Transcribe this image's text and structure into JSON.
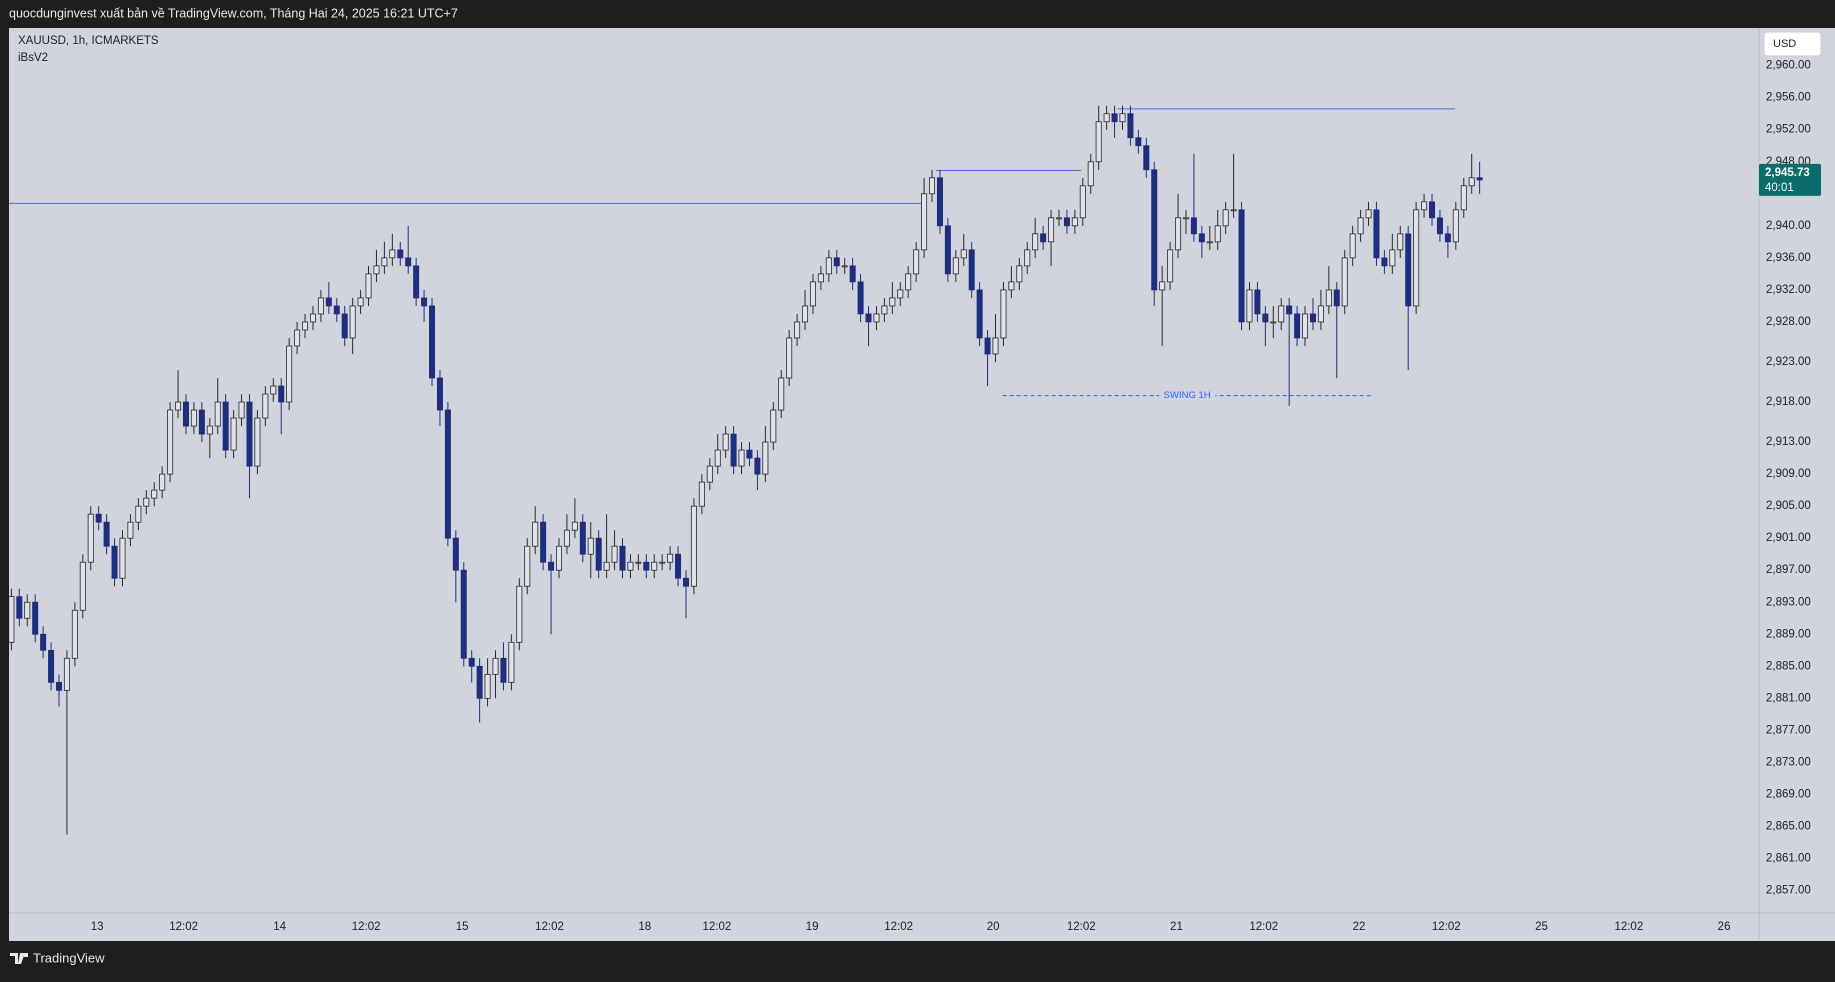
{
  "header": {
    "publisher": "quocdunginvest xuất bản về TradingView.com, Tháng Hai 24, 2025 16:21 UTC+7"
  },
  "footer": {
    "brand": "TradingView"
  },
  "chart_data": {
    "type": "candlestick",
    "title": "XAUUSD, 1h, ICMARKETS",
    "indicator": "iBsV2",
    "currency": "USD",
    "up_color": "#dfe2ea",
    "down_color": "#1f2f7e",
    "line_color": "#4f6fd6",
    "open": [
      2888,
      2893.7,
      2891,
      2893,
      2889,
      2887,
      2883,
      2882,
      2886,
      2892,
      2898,
      2904,
      2903,
      2900,
      2896,
      2901,
      2903,
      2905,
      2906,
      2907,
      2909,
      2917,
      2918,
      2915,
      2917,
      2914,
      2915,
      2918,
      2912,
      2916,
      2918,
      2910,
      2916,
      2919,
      2920,
      2918,
      2925,
      2927,
      2928,
      2929,
      2931,
      2930,
      2929,
      2926,
      2930,
      2931,
      2934,
      2935,
      2936,
      2937,
      2936,
      2935,
      2931,
      2930,
      2921,
      2917,
      2901,
      2897,
      2886,
      2885,
      2881,
      2884,
      2886,
      2883,
      2888,
      2895,
      2900,
      2903,
      2898,
      2897,
      2900,
      2902,
      2903,
      2899,
      2901,
      2897,
      2898,
      2900,
      2897,
      2898,
      2898,
      2897,
      2898,
      2898,
      2899,
      2896,
      2895,
      2905,
      2908,
      2910,
      2912,
      2914,
      2910,
      2912,
      2911,
      2909,
      2913,
      2917,
      2921,
      2926,
      2928,
      2930,
      2933,
      2934,
      2936,
      2935,
      2935,
      2933,
      2929,
      2928,
      2929,
      2930,
      2931,
      2932,
      2934,
      2937,
      2944,
      2946,
      2940,
      2934,
      2936,
      2937,
      2932,
      2926,
      2924,
      2926,
      2932,
      2933,
      2935,
      2937,
      2939,
      2938,
      2941,
      2941,
      2940,
      2941,
      2945,
      2948,
      2953,
      2954,
      2953,
      2954,
      2951,
      2950,
      2947,
      2932,
      2933,
      2937,
      2941,
      2941,
      2939,
      2938,
      2938,
      2940,
      2942,
      2942,
      2928,
      2932,
      2929,
      2928,
      2928,
      2930,
      2929,
      2926,
      2929,
      2928,
      2930,
      2932,
      2930,
      2936,
      2939,
      2941,
      2942,
      2936,
      2935,
      2937,
      2939,
      2930,
      2942,
      2943,
      2941,
      2939,
      2938,
      2942,
      2945,
      2946
    ],
    "high": [
      2894.7,
      2894.7,
      2894,
      2894,
      2890,
      2888,
      2884,
      2887,
      2893,
      2899,
      2905,
      2905,
      2904,
      2901,
      2902,
      2904,
      2906,
      2907,
      2908,
      2910,
      2918,
      2922,
      2919,
      2918,
      2918,
      2916,
      2921,
      2919,
      2917,
      2919,
      2919,
      2917,
      2920,
      2921,
      2921,
      2926,
      2928,
      2929,
      2930,
      2932,
      2933,
      2931,
      2930,
      2931,
      2932,
      2935,
      2937,
      2938,
      2939,
      2938,
      2940,
      2936,
      2932,
      2931,
      2922,
      2918,
      2902,
      2898,
      2887,
      2886,
      2886,
      2887,
      2888,
      2889,
      2896,
      2901,
      2905,
      2904,
      2899,
      2901,
      2904,
      2906,
      2904,
      2903,
      2902,
      2904,
      2902,
      2901,
      2899,
      2899,
      2899,
      2899,
      2899,
      2900,
      2900,
      2897,
      2906,
      2909,
      2911,
      2914,
      2915,
      2915,
      2913,
      2913,
      2912,
      2915,
      2918,
      2922,
      2927,
      2929,
      2932,
      2934,
      2935,
      2937,
      2937,
      2936,
      2936,
      2934,
      2930,
      2930,
      2931,
      2933,
      2933,
      2935,
      2938,
      2946,
      2947,
      2947,
      2941,
      2937,
      2939,
      2938,
      2933,
      2927,
      2929,
      2933,
      2935,
      2936,
      2938,
      2941,
      2940,
      2942,
      2942,
      2942,
      2942,
      2946,
      2949,
      2955,
      2955,
      2955,
      2955,
      2955,
      2952,
      2951,
      2948,
      2935,
      2938,
      2944,
      2942,
      2949,
      2940,
      2940,
      2942,
      2943,
      2949,
      2943,
      2933,
      2933,
      2930,
      2930,
      2931,
      2931,
      2930,
      2930,
      2931,
      2932,
      2935,
      2933,
      2937,
      2940,
      2942,
      2943,
      2943,
      2937,
      2939,
      2940,
      2940,
      2943,
      2944,
      2944,
      2942,
      2940,
      2943,
      2946,
      2949,
      2948
    ],
    "low": [
      2887,
      2890,
      2890,
      2888,
      2886,
      2882,
      2880,
      2864,
      2885,
      2891,
      2897,
      2902,
      2899,
      2895,
      2895,
      2900,
      2902,
      2904,
      2905,
      2906,
      2908,
      2916,
      2914,
      2914,
      2913,
      2911,
      2914,
      2911,
      2911,
      2915,
      2906,
      2909,
      2915,
      2918,
      2914,
      2917,
      2924,
      2926,
      2927,
      2928,
      2929,
      2928,
      2925,
      2924,
      2929,
      2930,
      2933,
      2934,
      2935,
      2935,
      2934,
      2930,
      2928,
      2920,
      2915,
      2900,
      2893,
      2885,
      2883,
      2878,
      2880,
      2881,
      2882,
      2882,
      2887,
      2894,
      2899,
      2897,
      2889,
      2896,
      2899,
      2901,
      2898,
      2896,
      2896,
      2896,
      2897,
      2896,
      2896,
      2897,
      2896,
      2896,
      2897,
      2897,
      2895,
      2891,
      2894,
      2904,
      2907,
      2909,
      2911,
      2909,
      2909,
      2910,
      2907,
      2908,
      2912,
      2916,
      2920,
      2925,
      2927,
      2929,
      2932,
      2933,
      2934,
      2934,
      2932,
      2928,
      2925,
      2927,
      2928,
      2929,
      2930,
      2931,
      2933,
      2936,
      2943,
      2939,
      2933,
      2933,
      2935,
      2931,
      2925,
      2920,
      2923,
      2925,
      2931,
      2932,
      2934,
      2936,
      2937,
      2935,
      2940,
      2939,
      2939,
      2940,
      2944,
      2947,
      2952,
      2951,
      2952,
      2950,
      2949,
      2946,
      2930,
      2925,
      2932,
      2936,
      2939,
      2938,
      2936,
      2937,
      2937,
      2939,
      2941,
      2927,
      2927,
      2928,
      2925,
      2926,
      2927,
      2917.5,
      2925,
      2925,
      2927,
      2927,
      2929,
      2921,
      2929,
      2935,
      2938,
      2940,
      2935,
      2934,
      2934,
      2936,
      2922,
      2929,
      2941,
      2940,
      2938,
      2936,
      2937,
      2941,
      2944,
      2944
    ],
    "close": [
      2893.7,
      2891,
      2893,
      2889,
      2887,
      2883,
      2882,
      2886,
      2892,
      2898,
      2904,
      2903,
      2900,
      2896,
      2901,
      2903,
      2905,
      2906,
      2907,
      2909,
      2917,
      2918,
      2915,
      2917,
      2914,
      2915,
      2918,
      2912,
      2916,
      2918,
      2910,
      2916,
      2919,
      2920,
      2918,
      2925,
      2927,
      2928,
      2929,
      2931,
      2930,
      2929,
      2926,
      2930,
      2931,
      2934,
      2935,
      2936,
      2937,
      2936,
      2935,
      2931,
      2930,
      2921,
      2917,
      2901,
      2897,
      2886,
      2885,
      2881,
      2884,
      2886,
      2883,
      2888,
      2895,
      2900,
      2903,
      2898,
      2897,
      2900,
      2902,
      2903,
      2899,
      2901,
      2897,
      2898,
      2900,
      2897,
      2898,
      2898,
      2897,
      2898,
      2898,
      2899,
      2896,
      2895,
      2905,
      2908,
      2910,
      2912,
      2914,
      2910,
      2912,
      2911,
      2909,
      2913,
      2917,
      2921,
      2926,
      2928,
      2930,
      2933,
      2934,
      2936,
      2935,
      2935,
      2933,
      2929,
      2928,
      2929,
      2930,
      2931,
      2932,
      2934,
      2937,
      2944,
      2946,
      2940,
      2934,
      2936,
      2937,
      2932,
      2926,
      2924,
      2926,
      2932,
      2933,
      2935,
      2937,
      2939,
      2938,
      2941,
      2941,
      2940,
      2941,
      2945,
      2948,
      2953,
      2954,
      2953,
      2954,
      2951,
      2950,
      2947,
      2932,
      2933,
      2937,
      2941,
      2941,
      2939,
      2938,
      2938,
      2940,
      2942,
      2942,
      2928,
      2932,
      2929,
      2928,
      2928,
      2930,
      2929,
      2926,
      2929,
      2928,
      2930,
      2932,
      2930,
      2936,
      2939,
      2941,
      2942,
      2936,
      2935,
      2937,
      2939,
      2930,
      2942,
      2943,
      2941,
      2939,
      2938,
      2942,
      2945,
      2946,
      2945.73
    ],
    "levels": [
      {
        "value": 2942.8,
        "x": [
          -0.3,
          114.7
        ]
      },
      {
        "value": 2946.9,
        "x": [
          116.5,
          134.8
        ]
      },
      {
        "value": 2954.6,
        "x": [
          139.4,
          181.9
        ]
      }
    ],
    "swing": {
      "label": "SWING 1H",
      "value": 2918.8,
      "x": [
        124.9,
        171.4
      ],
      "color": "#2962ff"
    },
    "last_price": {
      "value": 2945.73,
      "label": "2,945.73",
      "color": "#0c6b6b"
    },
    "countdown": "40:01",
    "xlim": [
      -0.3,
      220.2
    ],
    "ylim": [
      2854.2,
      2964.7
    ],
    "xticks": [
      {
        "value": 10.8,
        "label": "13"
      },
      {
        "value": 21.7,
        "label": "12:02"
      },
      {
        "value": 33.8,
        "label": "14"
      },
      {
        "value": 44.7,
        "label": "12:02"
      },
      {
        "value": 56.8,
        "label": "15"
      },
      {
        "value": 67.8,
        "label": "12:02"
      },
      {
        "value": 79.8,
        "label": "18"
      },
      {
        "value": 88.9,
        "label": "12:02"
      },
      {
        "value": 100.9,
        "label": "19"
      },
      {
        "value": 111.8,
        "label": "12:02"
      },
      {
        "value": 123.7,
        "label": "20"
      },
      {
        "value": 134.8,
        "label": "12:02"
      },
      {
        "value": 146.8,
        "label": "21"
      },
      {
        "value": 157.8,
        "label": "12:02"
      },
      {
        "value": 169.8,
        "label": "22"
      },
      {
        "value": 180.8,
        "label": "12:02"
      },
      {
        "value": 192.8,
        "label": "25"
      },
      {
        "value": 203.8,
        "label": "12:02"
      },
      {
        "value": 215.8,
        "label": "26"
      }
    ],
    "yticks": [
      {
        "value": 2960,
        "label": "2,960.00"
      },
      {
        "value": 2956,
        "label": "2,956.00"
      },
      {
        "value": 2952,
        "label": "2,952.00"
      },
      {
        "value": 2948,
        "label": "2,948.00"
      },
      {
        "value": 2940,
        "label": "2,940.00"
      },
      {
        "value": 2936,
        "label": "2,936.00"
      },
      {
        "value": 2932,
        "label": "2,932.00"
      },
      {
        "value": 2928,
        "label": "2,928.00"
      },
      {
        "value": 2923,
        "label": "2,923.00"
      },
      {
        "value": 2918,
        "label": "2,918.00"
      },
      {
        "value": 2913,
        "label": "2,913.00"
      },
      {
        "value": 2909,
        "label": "2,909.00"
      },
      {
        "value": 2905,
        "label": "2,905.00"
      },
      {
        "value": 2901,
        "label": "2,901.00"
      },
      {
        "value": 2897,
        "label": "2,897.00"
      },
      {
        "value": 2893,
        "label": "2,893.00"
      },
      {
        "value": 2889,
        "label": "2,889.00"
      },
      {
        "value": 2885,
        "label": "2,885.00"
      },
      {
        "value": 2881,
        "label": "2,881.00"
      },
      {
        "value": 2877,
        "label": "2,877.00"
      },
      {
        "value": 2873,
        "label": "2,873.00"
      },
      {
        "value": 2869,
        "label": "2,869.00"
      },
      {
        "value": 2865,
        "label": "2,865.00"
      },
      {
        "value": 2861,
        "label": "2,861.00"
      },
      {
        "value": 2857,
        "label": "2,857.00"
      }
    ]
  }
}
